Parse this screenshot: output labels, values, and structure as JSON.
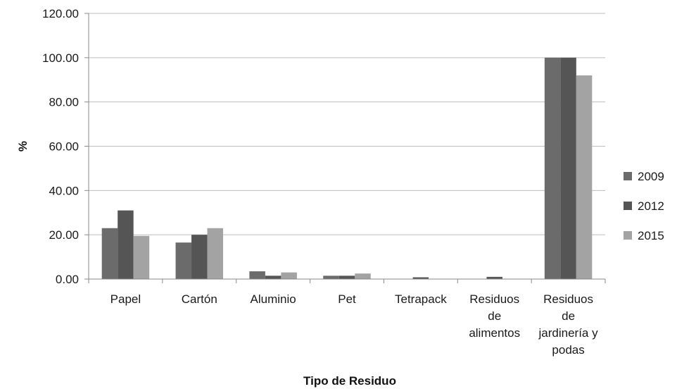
{
  "chart_data": {
    "type": "bar",
    "title": "",
    "xlabel": "Tipo de Residuo",
    "ylabel": "%",
    "ylim": [
      0,
      120
    ],
    "yticks": [
      "0.00",
      "20.00",
      "40.00",
      "60.00",
      "80.00",
      "100.00",
      "120.00"
    ],
    "grid": true,
    "legend_position": "right",
    "categories": [
      [
        "Papel"
      ],
      [
        "Cartón"
      ],
      [
        "Aluminio"
      ],
      [
        "Pet"
      ],
      [
        "Tetrapack"
      ],
      [
        "Residuos",
        "de",
        "alimentos"
      ],
      [
        "Residuos",
        "de",
        "jardinería y",
        "podas"
      ]
    ],
    "series": [
      {
        "name": "2009",
        "color": "#6b6b6b",
        "values": [
          23,
          16.5,
          3.5,
          1.5,
          0,
          0,
          100
        ]
      },
      {
        "name": "2012",
        "color": "#555555",
        "values": [
          31,
          20,
          1.5,
          1.5,
          0.8,
          1,
          100
        ]
      },
      {
        "name": "2015",
        "color": "#a3a3a3",
        "values": [
          19.5,
          23,
          3,
          2.5,
          0,
          0,
          92
        ]
      }
    ]
  }
}
